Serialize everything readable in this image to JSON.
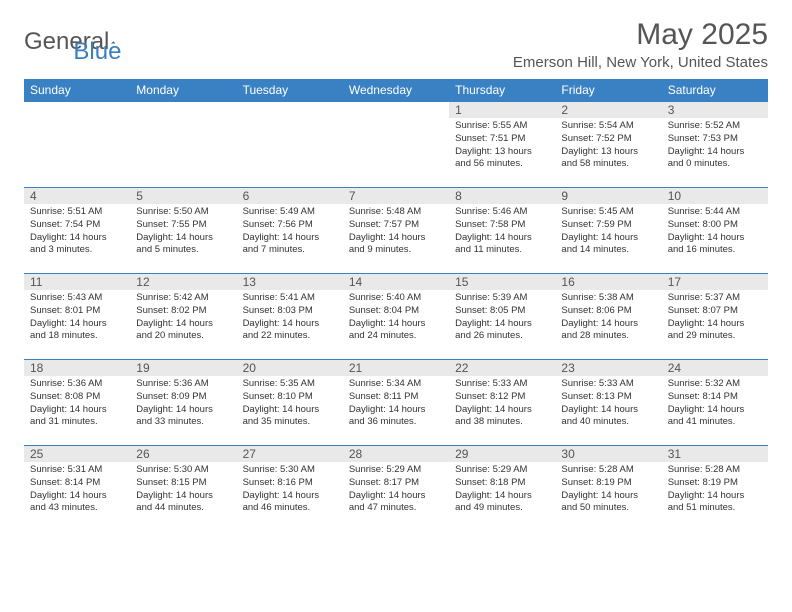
{
  "brand": {
    "part1": "General",
    "part2": "Blue"
  },
  "title": "May 2025",
  "location": "Emerson Hill, New York, United States",
  "colors": {
    "header_bg": "#3a81c4",
    "header_text": "#ffffff",
    "daynum_bg": "#e9e9e9",
    "border": "#3a81c4",
    "text": "#333333",
    "title": "#555555"
  },
  "day_headers": [
    "Sunday",
    "Monday",
    "Tuesday",
    "Wednesday",
    "Thursday",
    "Friday",
    "Saturday"
  ],
  "weeks": [
    [
      {
        "n": "",
        "lines": []
      },
      {
        "n": "",
        "lines": []
      },
      {
        "n": "",
        "lines": []
      },
      {
        "n": "",
        "lines": []
      },
      {
        "n": "1",
        "lines": [
          "Sunrise: 5:55 AM",
          "Sunset: 7:51 PM",
          "Daylight: 13 hours and 56 minutes."
        ]
      },
      {
        "n": "2",
        "lines": [
          "Sunrise: 5:54 AM",
          "Sunset: 7:52 PM",
          "Daylight: 13 hours and 58 minutes."
        ]
      },
      {
        "n": "3",
        "lines": [
          "Sunrise: 5:52 AM",
          "Sunset: 7:53 PM",
          "Daylight: 14 hours and 0 minutes."
        ]
      }
    ],
    [
      {
        "n": "4",
        "lines": [
          "Sunrise: 5:51 AM",
          "Sunset: 7:54 PM",
          "Daylight: 14 hours and 3 minutes."
        ]
      },
      {
        "n": "5",
        "lines": [
          "Sunrise: 5:50 AM",
          "Sunset: 7:55 PM",
          "Daylight: 14 hours and 5 minutes."
        ]
      },
      {
        "n": "6",
        "lines": [
          "Sunrise: 5:49 AM",
          "Sunset: 7:56 PM",
          "Daylight: 14 hours and 7 minutes."
        ]
      },
      {
        "n": "7",
        "lines": [
          "Sunrise: 5:48 AM",
          "Sunset: 7:57 PM",
          "Daylight: 14 hours and 9 minutes."
        ]
      },
      {
        "n": "8",
        "lines": [
          "Sunrise: 5:46 AM",
          "Sunset: 7:58 PM",
          "Daylight: 14 hours and 11 minutes."
        ]
      },
      {
        "n": "9",
        "lines": [
          "Sunrise: 5:45 AM",
          "Sunset: 7:59 PM",
          "Daylight: 14 hours and 14 minutes."
        ]
      },
      {
        "n": "10",
        "lines": [
          "Sunrise: 5:44 AM",
          "Sunset: 8:00 PM",
          "Daylight: 14 hours and 16 minutes."
        ]
      }
    ],
    [
      {
        "n": "11",
        "lines": [
          "Sunrise: 5:43 AM",
          "Sunset: 8:01 PM",
          "Daylight: 14 hours and 18 minutes."
        ]
      },
      {
        "n": "12",
        "lines": [
          "Sunrise: 5:42 AM",
          "Sunset: 8:02 PM",
          "Daylight: 14 hours and 20 minutes."
        ]
      },
      {
        "n": "13",
        "lines": [
          "Sunrise: 5:41 AM",
          "Sunset: 8:03 PM",
          "Daylight: 14 hours and 22 minutes."
        ]
      },
      {
        "n": "14",
        "lines": [
          "Sunrise: 5:40 AM",
          "Sunset: 8:04 PM",
          "Daylight: 14 hours and 24 minutes."
        ]
      },
      {
        "n": "15",
        "lines": [
          "Sunrise: 5:39 AM",
          "Sunset: 8:05 PM",
          "Daylight: 14 hours and 26 minutes."
        ]
      },
      {
        "n": "16",
        "lines": [
          "Sunrise: 5:38 AM",
          "Sunset: 8:06 PM",
          "Daylight: 14 hours and 28 minutes."
        ]
      },
      {
        "n": "17",
        "lines": [
          "Sunrise: 5:37 AM",
          "Sunset: 8:07 PM",
          "Daylight: 14 hours and 29 minutes."
        ]
      }
    ],
    [
      {
        "n": "18",
        "lines": [
          "Sunrise: 5:36 AM",
          "Sunset: 8:08 PM",
          "Daylight: 14 hours and 31 minutes."
        ]
      },
      {
        "n": "19",
        "lines": [
          "Sunrise: 5:36 AM",
          "Sunset: 8:09 PM",
          "Daylight: 14 hours and 33 minutes."
        ]
      },
      {
        "n": "20",
        "lines": [
          "Sunrise: 5:35 AM",
          "Sunset: 8:10 PM",
          "Daylight: 14 hours and 35 minutes."
        ]
      },
      {
        "n": "21",
        "lines": [
          "Sunrise: 5:34 AM",
          "Sunset: 8:11 PM",
          "Daylight: 14 hours and 36 minutes."
        ]
      },
      {
        "n": "22",
        "lines": [
          "Sunrise: 5:33 AM",
          "Sunset: 8:12 PM",
          "Daylight: 14 hours and 38 minutes."
        ]
      },
      {
        "n": "23",
        "lines": [
          "Sunrise: 5:33 AM",
          "Sunset: 8:13 PM",
          "Daylight: 14 hours and 40 minutes."
        ]
      },
      {
        "n": "24",
        "lines": [
          "Sunrise: 5:32 AM",
          "Sunset: 8:14 PM",
          "Daylight: 14 hours and 41 minutes."
        ]
      }
    ],
    [
      {
        "n": "25",
        "lines": [
          "Sunrise: 5:31 AM",
          "Sunset: 8:14 PM",
          "Daylight: 14 hours and 43 minutes."
        ]
      },
      {
        "n": "26",
        "lines": [
          "Sunrise: 5:30 AM",
          "Sunset: 8:15 PM",
          "Daylight: 14 hours and 44 minutes."
        ]
      },
      {
        "n": "27",
        "lines": [
          "Sunrise: 5:30 AM",
          "Sunset: 8:16 PM",
          "Daylight: 14 hours and 46 minutes."
        ]
      },
      {
        "n": "28",
        "lines": [
          "Sunrise: 5:29 AM",
          "Sunset: 8:17 PM",
          "Daylight: 14 hours and 47 minutes."
        ]
      },
      {
        "n": "29",
        "lines": [
          "Sunrise: 5:29 AM",
          "Sunset: 8:18 PM",
          "Daylight: 14 hours and 49 minutes."
        ]
      },
      {
        "n": "30",
        "lines": [
          "Sunrise: 5:28 AM",
          "Sunset: 8:19 PM",
          "Daylight: 14 hours and 50 minutes."
        ]
      },
      {
        "n": "31",
        "lines": [
          "Sunrise: 5:28 AM",
          "Sunset: 8:19 PM",
          "Daylight: 14 hours and 51 minutes."
        ]
      }
    ]
  ]
}
